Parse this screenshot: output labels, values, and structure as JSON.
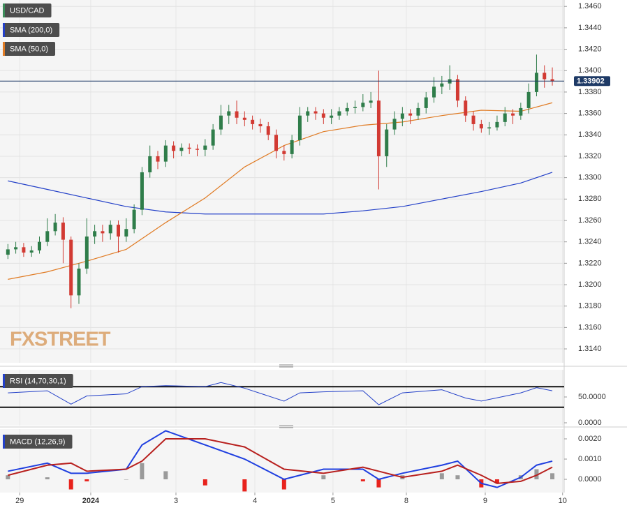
{
  "chart_data": [
    {
      "type": "candlestick",
      "watermark": "FXSTREET",
      "candles": {
        "name": "USD/CAD",
        "legend_color": "#3c8c5a",
        "up_color": "#2f7d4a",
        "down_color": "#d23a33",
        "open": [
          1.3228,
          1.3233,
          1.3235,
          1.323,
          1.3232,
          1.324,
          1.325,
          1.3258,
          1.3242,
          1.319,
          1.3215,
          1.3245,
          1.325,
          1.3248,
          1.3256,
          1.3245,
          1.3252,
          1.327,
          1.3305,
          1.332,
          1.3315,
          1.333,
          1.3325,
          1.3328,
          1.3327,
          1.3326,
          1.333,
          1.3345,
          1.3358,
          1.3362,
          1.3356,
          1.3354,
          1.335,
          1.3348,
          1.334,
          1.3325,
          1.3322,
          1.3335,
          1.3358,
          1.3362,
          1.336,
          1.3356,
          1.3358,
          1.3362,
          1.3365,
          1.3366,
          1.337,
          1.3372,
          1.332,
          1.3345,
          1.3355,
          1.336,
          1.3358,
          1.3365,
          1.3375,
          1.3385,
          1.3388,
          1.3392,
          1.3372,
          1.3358,
          1.335,
          1.3346,
          1.3347,
          1.3352,
          1.336,
          1.3358,
          1.3365,
          1.338,
          1.3398,
          1.3392
        ],
        "high": [
          1.3238,
          1.324,
          1.3239,
          1.3236,
          1.3245,
          1.3262,
          1.3266,
          1.3263,
          1.3245,
          1.322,
          1.3262,
          1.3256,
          1.3256,
          1.326,
          1.326,
          1.3262,
          1.3275,
          1.331,
          1.333,
          1.3325,
          1.3335,
          1.3334,
          1.3332,
          1.3332,
          1.3331,
          1.3336,
          1.335,
          1.3368,
          1.3368,
          1.3372,
          1.3362,
          1.3358,
          1.3355,
          1.3352,
          1.3345,
          1.333,
          1.334,
          1.3366,
          1.3366,
          1.3366,
          1.3364,
          1.3364,
          1.3366,
          1.337,
          1.3372,
          1.3378,
          1.338,
          1.34,
          1.335,
          1.3362,
          1.3366,
          1.3364,
          1.337,
          1.338,
          1.3394,
          1.3395,
          1.3405,
          1.3396,
          1.3376,
          1.3362,
          1.3354,
          1.3352,
          1.3358,
          1.3366,
          1.3364,
          1.337,
          1.3388,
          1.3415,
          1.3405,
          1.3403
        ],
        "low": [
          1.3224,
          1.3229,
          1.3226,
          1.3226,
          1.3229,
          1.3236,
          1.3246,
          1.322,
          1.3178,
          1.3182,
          1.321,
          1.3238,
          1.324,
          1.3242,
          1.323,
          1.324,
          1.3248,
          1.3265,
          1.33,
          1.3308,
          1.331,
          1.3318,
          1.332,
          1.3322,
          1.332,
          1.332,
          1.3326,
          1.334,
          1.335,
          1.335,
          1.3348,
          1.3345,
          1.3342,
          1.3335,
          1.3318,
          1.3316,
          1.3318,
          1.333,
          1.3352,
          1.3354,
          1.335,
          1.335,
          1.3354,
          1.3358,
          1.336,
          1.3362,
          1.3365,
          1.3289,
          1.331,
          1.334,
          1.3348,
          1.335,
          1.3354,
          1.336,
          1.337,
          1.3378,
          1.3382,
          1.3366,
          1.3352,
          1.3344,
          1.3342,
          1.334,
          1.3344,
          1.3348,
          1.335,
          1.3354,
          1.336,
          1.3376,
          1.3384,
          1.3386
        ],
        "close": [
          1.3233,
          1.3235,
          1.323,
          1.3232,
          1.324,
          1.325,
          1.3258,
          1.3242,
          1.319,
          1.3215,
          1.3245,
          1.325,
          1.3248,
          1.3256,
          1.3245,
          1.3252,
          1.327,
          1.3305,
          1.332,
          1.3315,
          1.333,
          1.3325,
          1.3328,
          1.3327,
          1.3326,
          1.333,
          1.3345,
          1.3358,
          1.3362,
          1.3356,
          1.3354,
          1.335,
          1.3348,
          1.334,
          1.3325,
          1.3322,
          1.3335,
          1.3358,
          1.3362,
          1.336,
          1.3356,
          1.3358,
          1.3362,
          1.3365,
          1.3366,
          1.337,
          1.3372,
          1.332,
          1.3345,
          1.3355,
          1.336,
          1.3358,
          1.3365,
          1.3375,
          1.3385,
          1.3388,
          1.3392,
          1.3372,
          1.3358,
          1.335,
          1.3346,
          1.3347,
          1.3352,
          1.336,
          1.3358,
          1.3365,
          1.338,
          1.3398,
          1.3392,
          1.339
        ]
      },
      "x": [
        0,
        1,
        2,
        3,
        4,
        5,
        6,
        7,
        8,
        9,
        10,
        11,
        12,
        13,
        14,
        15,
        16,
        17,
        18,
        19,
        20,
        21,
        22,
        23,
        24,
        25,
        26,
        27,
        28,
        29,
        30,
        31,
        32,
        33,
        34,
        35,
        36,
        37,
        38,
        39,
        40,
        41,
        42,
        43,
        44,
        45,
        46,
        47,
        48,
        49,
        50,
        51,
        52,
        53,
        54,
        55,
        56,
        57,
        58,
        59,
        60,
        61,
        62,
        63,
        64,
        65,
        66,
        67,
        68,
        69
      ],
      "overlays": [
        {
          "name": "SMA (200,0)",
          "color": "#2340c8",
          "x": [
            0,
            5,
            10,
            15,
            20,
            25,
            30,
            35,
            40,
            45,
            50,
            55,
            60,
            65,
            69
          ],
          "values": [
            1.3297,
            1.3289,
            1.3281,
            1.3273,
            1.3268,
            1.3266,
            1.3266,
            1.3266,
            1.3266,
            1.3269,
            1.3273,
            1.328,
            1.3287,
            1.3295,
            1.3305
          ]
        },
        {
          "name": "SMA (50,0)",
          "color": "#e07b24",
          "x": [
            0,
            5,
            10,
            15,
            20,
            25,
            30,
            35,
            40,
            45,
            50,
            55,
            60,
            65,
            69
          ],
          "values": [
            1.3205,
            1.3212,
            1.3222,
            1.3233,
            1.3258,
            1.3281,
            1.331,
            1.333,
            1.3343,
            1.3349,
            1.3352,
            1.3358,
            1.3363,
            1.3362,
            1.337
          ]
        }
      ],
      "last_price": 1.33902,
      "last_price_color": "#1e3a66",
      "xlim": [
        -1,
        70.5
      ],
      "ylim": [
        1.3127,
        1.3466
      ],
      "yticks": [
        {
          "value": 1.314,
          "label": "1.3140"
        },
        {
          "value": 1.316,
          "label": "1.3160"
        },
        {
          "value": 1.318,
          "label": "1.3180"
        },
        {
          "value": 1.32,
          "label": "1.3200"
        },
        {
          "value": 1.322,
          "label": "1.3220"
        },
        {
          "value": 1.324,
          "label": "1.3240"
        },
        {
          "value": 1.326,
          "label": "1.3260"
        },
        {
          "value": 1.328,
          "label": "1.3280"
        },
        {
          "value": 1.33,
          "label": "1.3300"
        },
        {
          "value": 1.332,
          "label": "1.3320"
        },
        {
          "value": 1.334,
          "label": "1.3340"
        },
        {
          "value": 1.336,
          "label": "1.3360"
        },
        {
          "value": 1.338,
          "label": "1.3380"
        },
        {
          "value": 1.34,
          "label": "1.3400"
        },
        {
          "value": 1.342,
          "label": "1.3420"
        },
        {
          "value": 1.344,
          "label": "1.3440"
        },
        {
          "value": 1.346,
          "label": "1.3460"
        }
      ],
      "grid": true
    },
    {
      "type": "line",
      "label": "RSI (14,70,30,1)",
      "label_color": "#2340c8",
      "x": [
        0,
        5,
        8,
        10,
        15,
        17,
        20,
        25,
        27,
        30,
        35,
        37,
        40,
        45,
        47,
        50,
        55,
        58,
        60,
        65,
        67,
        69
      ],
      "values": [
        58,
        62,
        36,
        52,
        56,
        70,
        72,
        70,
        78,
        67,
        42,
        58,
        60,
        62,
        35,
        58,
        64,
        48,
        42,
        58,
        68,
        62
      ],
      "color": "#2340c8",
      "levels": [
        70,
        30
      ],
      "xlim": [
        -1,
        70.5
      ],
      "ylim": [
        0,
        100
      ],
      "yticks": [
        {
          "value": 50,
          "label": "50.0000"
        },
        {
          "value": 0,
          "label": "0.0000"
        }
      ]
    },
    {
      "type": "macd",
      "label": "MACD (12,26,9)",
      "label_color": "#2340c8",
      "x": [
        0,
        5,
        8,
        10,
        15,
        17,
        20,
        25,
        30,
        35,
        40,
        45,
        47,
        50,
        55,
        57,
        60,
        62,
        65,
        67,
        69
      ],
      "macd": {
        "color": "#1f3fe0",
        "values": [
          0.0004,
          0.0008,
          0.0003,
          0.0003,
          0.0005,
          0.0017,
          0.0024,
          0.0017,
          0.001,
          0.0,
          0.0005,
          0.0005,
          0.0,
          0.0003,
          0.0007,
          0.0009,
          -0.0002,
          -0.0004,
          0.0001,
          0.0007,
          0.0009
        ]
      },
      "signal": {
        "color": "#b8201e",
        "values": [
          0.0002,
          0.0007,
          0.0008,
          0.0004,
          0.0005,
          0.0009,
          0.002,
          0.002,
          0.0016,
          0.0005,
          0.0003,
          0.0006,
          0.0004,
          0.0001,
          0.0004,
          0.0007,
          0.0002,
          -0.0002,
          -0.0001,
          0.0002,
          0.0006
        ]
      },
      "histogram": {
        "up_color": "#9a9a9a",
        "down_color": "#e8221c",
        "values": [
          0.0002,
          0.0001,
          -0.0005,
          -0.0001,
          0.0,
          0.0008,
          0.0004,
          -0.0003,
          -0.0006,
          -0.0005,
          0.0002,
          -0.0001,
          -0.0004,
          0.0002,
          0.0003,
          0.0002,
          -0.0004,
          -0.0002,
          0.0002,
          0.0005,
          0.0003
        ]
      },
      "xlim": [
        -1,
        70.5
      ],
      "ylim": [
        -0.00062,
        0.00238
      ],
      "yticks": [
        {
          "value": 0.002,
          "label": "0.0020"
        },
        {
          "value": 0.001,
          "label": "0.0010"
        },
        {
          "value": 0,
          "label": "0.0000"
        }
      ],
      "xticks": [
        {
          "value": 1.5,
          "label": "29"
        },
        {
          "value": 10.5,
          "label": "2024"
        },
        {
          "value": 21.3,
          "label": "3"
        },
        {
          "value": 31.3,
          "label": "4"
        },
        {
          "value": 41.2,
          "label": "5"
        },
        {
          "value": 50.5,
          "label": "8"
        },
        {
          "value": 60.5,
          "label": "9"
        },
        {
          "value": 70.3,
          "label": "10"
        }
      ]
    }
  ]
}
